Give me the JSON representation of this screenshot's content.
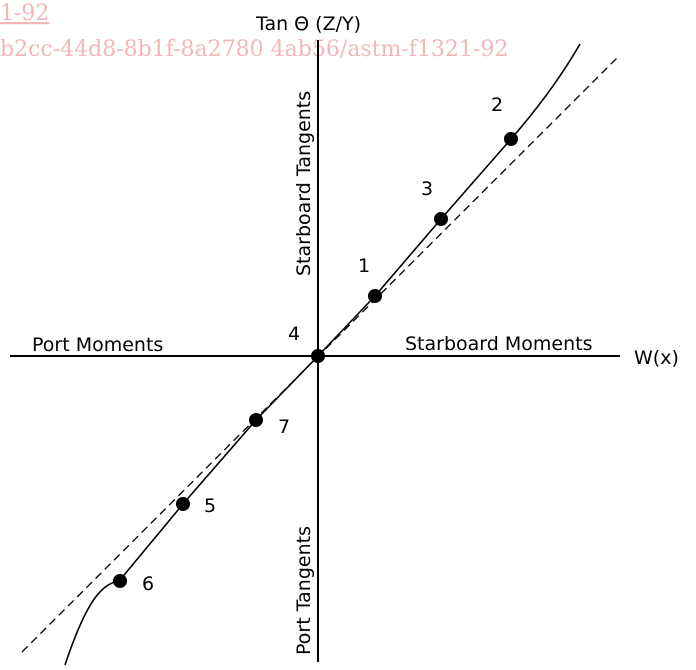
{
  "watermark": {
    "line1": "1-92",
    "line2": "b2cc-44d8-8b1f-8a2780 4ab56/astm-f1321-92"
  },
  "axes": {
    "y_title": "Tan Θ (Z/Y)",
    "x_title": "W(x)",
    "left_label": "Port Moments",
    "right_label": "Starboard Moments",
    "upper_label": "Starboard Tangents",
    "lower_label": "Port Tangents"
  },
  "points": [
    {
      "label": "1"
    },
    {
      "label": "2"
    },
    {
      "label": "3"
    },
    {
      "label": "4"
    },
    {
      "label": "5"
    },
    {
      "label": "6"
    },
    {
      "label": "7"
    }
  ],
  "colors": {
    "line": "#000000",
    "watermark": "#f2b8b8"
  }
}
